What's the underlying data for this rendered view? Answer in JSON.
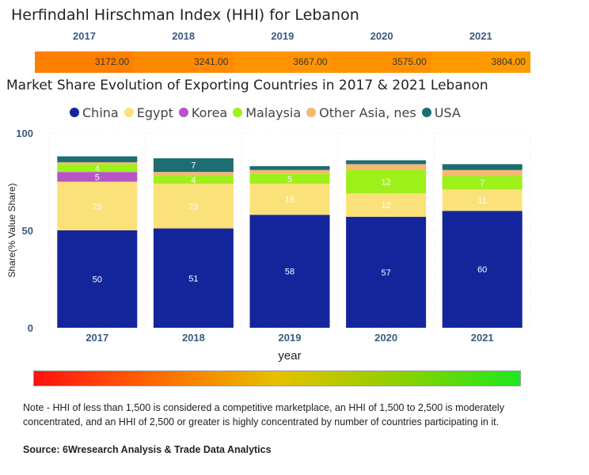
{
  "hhi": {
    "title": "Herfindahl Hirschman Index (HHI) for Lebanon",
    "years": [
      "2017",
      "2018",
      "2019",
      "2020",
      "2021"
    ],
    "values": [
      "3172.00",
      "3241.00",
      "3667.00",
      "3575.00",
      "3804.00"
    ],
    "colors": [
      "#ff7f00",
      "#ff8900",
      "#ff9400",
      "#ff9100",
      "#ff9a00"
    ]
  },
  "chart_data": {
    "type": "bar",
    "stacked": true,
    "title": "Market Share Evolution of Exporting Countries in 2017 & 2021 Lebanon",
    "xlabel": "year",
    "ylabel": "Share(% Value Share)",
    "ylim": [
      0,
      100
    ],
    "yticks": [
      "0",
      "50",
      "100"
    ],
    "categories": [
      "2017",
      "2018",
      "2019",
      "2020",
      "2021"
    ],
    "series": [
      {
        "name": "China",
        "color": "#14259c",
        "values": [
          50,
          51,
          58,
          57,
          60
        ],
        "labels": [
          "50",
          "51",
          "58",
          "57",
          "60"
        ]
      },
      {
        "name": "Egypt",
        "color": "#fbe17a",
        "values": [
          25,
          23,
          16,
          12,
          11
        ],
        "labels": [
          "25",
          "23",
          "16",
          "12",
          "11"
        ]
      },
      {
        "name": "Korea",
        "color": "#b853c8",
        "values": [
          5,
          0,
          0,
          0,
          0
        ],
        "labels": [
          "5",
          "",
          "",
          "",
          ""
        ]
      },
      {
        "name": "Malaysia",
        "color": "#9ef01a",
        "values": [
          4,
          4,
          5,
          12,
          7
        ],
        "labels": [
          "4",
          "4",
          "5",
          "12",
          "7"
        ]
      },
      {
        "name": "Other Asia, nes",
        "color": "#f5b971",
        "values": [
          1,
          2,
          2,
          3,
          3
        ],
        "labels": [
          "",
          "",
          "",
          "",
          ""
        ]
      },
      {
        "name": "USA",
        "color": "#1c6e73",
        "values": [
          3,
          7,
          2,
          2,
          3
        ],
        "labels": [
          "",
          "7",
          "",
          "",
          ""
        ]
      }
    ]
  },
  "gradient": {
    "colors": [
      "#ff1010",
      "#ff6a00",
      "#e6c000",
      "#8ed000",
      "#1ee81e"
    ]
  },
  "note": "Note - HHI of less than 1,500 is considered a competitive marketplace, an HHI of 1,500 to 2,500 is moderately concentrated, and an HHI of 2,500 or greater is highly concentrated by number of countries participating in it.",
  "source": "Source: 6Wresearch Analysis & Trade Data Analytics"
}
